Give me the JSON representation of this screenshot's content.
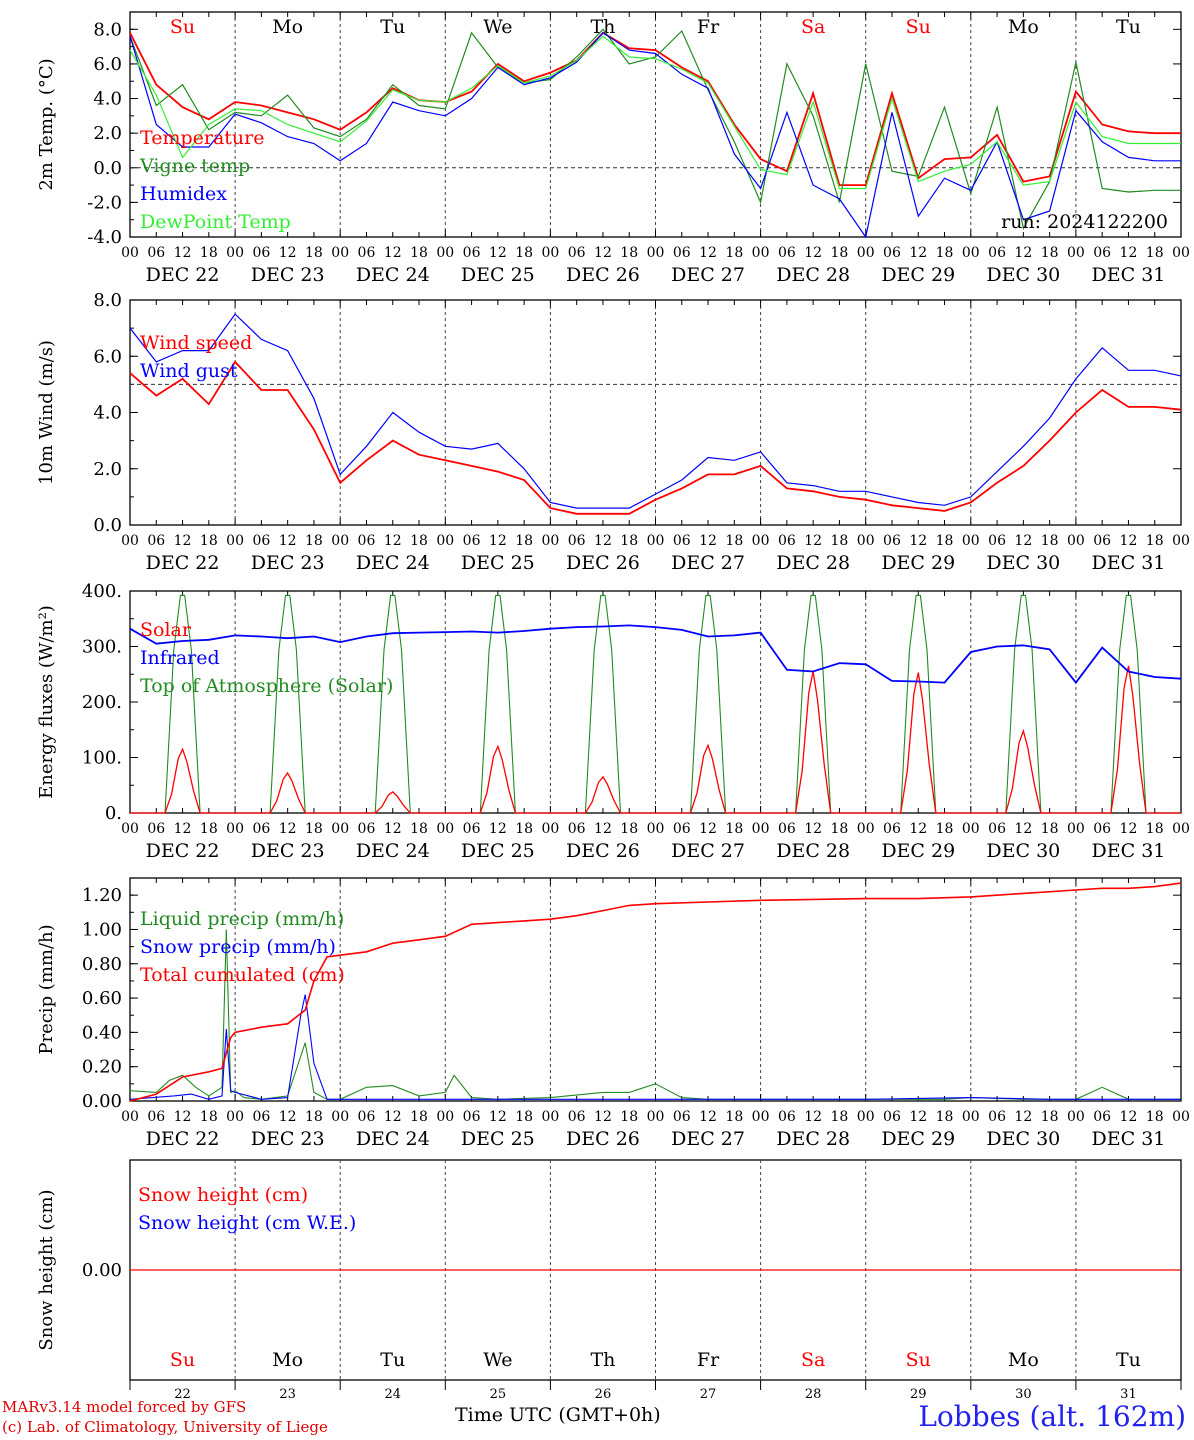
{
  "chart_data": [
    {
      "type": "line",
      "ylabel": "2m Temp. (°C)",
      "ylim": [
        -4,
        9
      ],
      "yticks": [
        "-4.0",
        "-2.0",
        "0.0",
        "2.0",
        "4.0",
        "6.0",
        "8.0"
      ],
      "ytick_values": [
        -4,
        -2,
        0,
        2,
        4,
        6,
        8
      ],
      "reference_line": 0,
      "annotation": "run: 2024122200",
      "x_hours": [
        0,
        6,
        12,
        18,
        24,
        30,
        36,
        42,
        48,
        54,
        60,
        66,
        72,
        78,
        84,
        90,
        96,
        102,
        108,
        114,
        120,
        126,
        132,
        138,
        144,
        150,
        156,
        162,
        168,
        174,
        180,
        186,
        192,
        198,
        204,
        210,
        216,
        222,
        228,
        234,
        240
      ],
      "series": [
        {
          "name": "Temperature",
          "color": "#ff0000",
          "values": [
            7.8,
            4.8,
            3.5,
            2.8,
            3.8,
            3.6,
            3.2,
            2.8,
            2.2,
            3.2,
            4.6,
            3.9,
            3.8,
            4.4,
            6.0,
            5.0,
            5.5,
            6.2,
            7.8,
            6.9,
            6.8,
            5.8,
            5.0,
            2.5,
            0.5,
            -0.2,
            4.3,
            -1.0,
            -1.0,
            4.3,
            -0.6,
            0.5,
            0.6,
            1.9,
            -0.8,
            -0.5,
            4.4,
            2.5,
            2.1,
            2.0,
            2.0
          ]
        },
        {
          "name": "Vigne temp",
          "color": "#228b22",
          "values": [
            7.6,
            3.6,
            4.8,
            2.2,
            3.2,
            3.0,
            4.2,
            2.3,
            1.8,
            2.8,
            4.8,
            3.6,
            3.4,
            7.8,
            5.8,
            4.9,
            5.1,
            6.4,
            8.0,
            6.0,
            6.4,
            7.9,
            4.5,
            1.5,
            -2.0,
            6.0,
            3.0,
            -2.0,
            6.0,
            -0.2,
            -0.5,
            3.5,
            -1.5,
            3.5,
            -3.5,
            -0.8,
            6.1,
            -1.2,
            -1.4,
            -1.3,
            -1.3
          ]
        },
        {
          "name": "Humidex",
          "color": "#0000ff",
          "values": [
            7.6,
            2.5,
            1.2,
            1.2,
            3.1,
            2.6,
            1.8,
            1.4,
            0.4,
            1.4,
            3.8,
            3.3,
            3.0,
            4.0,
            5.8,
            4.8,
            5.2,
            6.1,
            7.8,
            6.8,
            6.6,
            5.4,
            4.6,
            0.8,
            -1.2,
            3.2,
            -1.0,
            -1.8,
            -4.0,
            3.2,
            -2.8,
            -0.6,
            -1.3,
            1.5,
            -3.0,
            -2.5,
            3.3,
            1.5,
            0.6,
            0.4,
            0.4
          ]
        },
        {
          "name": "DewPoint Temp",
          "color": "#33ee33",
          "values": [
            6.8,
            4.2,
            0.6,
            2.5,
            3.4,
            3.3,
            2.5,
            2.0,
            1.5,
            2.7,
            4.5,
            3.9,
            3.8,
            4.6,
            5.9,
            4.9,
            5.3,
            6.2,
            7.6,
            6.4,
            6.3,
            5.7,
            4.9,
            2.4,
            -0.1,
            -0.4,
            3.8,
            -1.2,
            -1.2,
            4.0,
            -0.8,
            -0.2,
            0.2,
            1.5,
            -1.0,
            -0.8,
            3.8,
            1.8,
            1.4,
            1.4,
            1.4
          ]
        }
      ]
    },
    {
      "type": "line",
      "ylabel": "10m Wind (m/s)",
      "ylim": [
        0,
        8
      ],
      "yticks": [
        "0.0",
        "2.0",
        "4.0",
        "6.0",
        "8.0"
      ],
      "ytick_values": [
        0,
        2,
        4,
        6,
        8
      ],
      "reference_line": 5,
      "x_hours": [
        0,
        6,
        12,
        18,
        24,
        30,
        36,
        42,
        48,
        54,
        60,
        66,
        72,
        78,
        84,
        90,
        96,
        102,
        108,
        114,
        120,
        126,
        132,
        138,
        144,
        150,
        156,
        162,
        168,
        174,
        180,
        186,
        192,
        198,
        204,
        210,
        216,
        222,
        228,
        234,
        240
      ],
      "series": [
        {
          "name": "Wind speed",
          "color": "#ff0000",
          "values": [
            5.4,
            4.6,
            5.2,
            4.3,
            5.8,
            4.8,
            4.8,
            3.4,
            1.5,
            2.3,
            3.0,
            2.5,
            2.3,
            2.1,
            1.9,
            1.6,
            0.6,
            0.4,
            0.4,
            0.4,
            0.9,
            1.3,
            1.8,
            1.8,
            2.1,
            1.3,
            1.2,
            1.0,
            0.9,
            0.7,
            0.6,
            0.5,
            0.8,
            1.5,
            2.1,
            3.0,
            4.0,
            4.8,
            4.2,
            4.2,
            4.1
          ]
        },
        {
          "name": "Wind gust",
          "color": "#0000ff",
          "values": [
            7.0,
            5.8,
            6.2,
            6.2,
            7.5,
            6.6,
            6.2,
            4.5,
            1.8,
            2.8,
            4.0,
            3.3,
            2.8,
            2.7,
            2.9,
            2.0,
            0.8,
            0.6,
            0.6,
            0.6,
            1.1,
            1.6,
            2.4,
            2.3,
            2.6,
            1.5,
            1.4,
            1.2,
            1.2,
            1.0,
            0.8,
            0.7,
            1.0,
            1.9,
            2.8,
            3.8,
            5.2,
            6.3,
            5.5,
            5.5,
            5.3
          ]
        }
      ]
    },
    {
      "type": "line",
      "ylabel": "Energy fluxes (W/m²)",
      "ylim": [
        0,
        400
      ],
      "yticks": [
        "0.",
        "100.",
        "200.",
        "300.",
        "400."
      ],
      "ytick_values": [
        0,
        100,
        200,
        300,
        400
      ],
      "solar_peaks_by_day": [
        115,
        72,
        38,
        120,
        65,
        122,
        255,
        253,
        148,
        265
      ],
      "toa_peak": 392,
      "series": [
        {
          "name": "Solar",
          "color": "#ff0000"
        },
        {
          "name": "Infrared",
          "color": "#0000ff",
          "x_hours": [
            0,
            6,
            12,
            18,
            24,
            30,
            36,
            42,
            48,
            54,
            60,
            66,
            72,
            78,
            84,
            90,
            96,
            102,
            108,
            114,
            120,
            126,
            132,
            138,
            144,
            150,
            156,
            162,
            168,
            174,
            180,
            186,
            192,
            198,
            204,
            210,
            216,
            222,
            228,
            234,
            240
          ],
          "values": [
            332,
            305,
            310,
            312,
            320,
            318,
            315,
            318,
            308,
            318,
            324,
            325,
            326,
            327,
            325,
            328,
            332,
            335,
            336,
            338,
            335,
            330,
            318,
            320,
            325,
            258,
            255,
            270,
            268,
            238,
            237,
            235,
            290,
            300,
            302,
            295,
            235,
            298,
            255,
            245,
            242
          ]
        },
        {
          "name": "Top of Atmosphere (Solar)",
          "color": "#228b22"
        }
      ]
    },
    {
      "type": "line",
      "ylabel": "Precip (mm/h)",
      "ylim": [
        0,
        1.3
      ],
      "yticks": [
        "0.00",
        "0.20",
        "0.40",
        "0.60",
        "0.80",
        "1.00",
        "1.20"
      ],
      "ytick_values": [
        0,
        0.2,
        0.4,
        0.6,
        0.8,
        1.0,
        1.2
      ],
      "series": [
        {
          "name": "Liquid precip (mm/h)",
          "color": "#228b22",
          "x_hours": [
            0,
            6,
            9,
            12,
            15,
            18,
            21,
            22,
            23,
            24,
            26,
            30,
            36,
            40,
            42,
            45,
            48,
            54,
            60,
            66,
            72,
            74,
            78,
            84,
            96,
            108,
            114,
            120,
            126,
            132,
            144,
            168,
            186,
            192,
            204,
            216,
            222,
            228,
            240
          ],
          "values": [
            0.06,
            0.05,
            0.12,
            0.15,
            0.08,
            0.03,
            0.08,
            1.0,
            0.05,
            0.06,
            0.02,
            0.01,
            0.03,
            0.34,
            0.05,
            0.01,
            0.01,
            0.08,
            0.09,
            0.03,
            0.05,
            0.15,
            0.02,
            0.01,
            0.02,
            0.05,
            0.05,
            0.1,
            0.02,
            0.01,
            0.01,
            0.01,
            0.01,
            0.02,
            0.01,
            0.01,
            0.08,
            0.01,
            0.01
          ]
        },
        {
          "name": "Snow precip (mm/h)",
          "color": "#0000ff",
          "x_hours": [
            0,
            10,
            14,
            18,
            21,
            22,
            23,
            24,
            30,
            36,
            39,
            40,
            42,
            45,
            48,
            60,
            96,
            144,
            168,
            192,
            210,
            240
          ],
          "values": [
            0.01,
            0.03,
            0.04,
            0.01,
            0.03,
            0.42,
            0.06,
            0.05,
            0.01,
            0.02,
            0.5,
            0.62,
            0.22,
            0.01,
            0.01,
            0.01,
            0.01,
            0.01,
            0.01,
            0.02,
            0.01,
            0.01
          ]
        },
        {
          "name": "Total cumulated (cm)",
          "color": "#ff0000",
          "x_hours": [
            0,
            6,
            12,
            18,
            21,
            23,
            24,
            30,
            36,
            40,
            42,
            45,
            48,
            54,
            60,
            66,
            72,
            78,
            84,
            90,
            96,
            102,
            108,
            114,
            120,
            132,
            144,
            168,
            180,
            192,
            204,
            216,
            222,
            228,
            234,
            240
          ],
          "values": [
            0.0,
            0.04,
            0.14,
            0.17,
            0.19,
            0.37,
            0.4,
            0.43,
            0.45,
            0.53,
            0.7,
            0.84,
            0.85,
            0.87,
            0.92,
            0.94,
            0.96,
            1.03,
            1.04,
            1.05,
            1.06,
            1.08,
            1.11,
            1.14,
            1.15,
            1.16,
            1.17,
            1.18,
            1.18,
            1.19,
            1.21,
            1.23,
            1.24,
            1.24,
            1.25,
            1.27
          ]
        }
      ]
    },
    {
      "type": "line",
      "ylabel": "Snow height (cm)",
      "yticks": [
        "0.00"
      ],
      "ytick_values": [
        0
      ],
      "series": [
        {
          "name": "Snow height (cm)",
          "color": "#ff0000",
          "values": [
            0,
            0
          ]
        },
        {
          "name": "Snow height (cm W.E.)",
          "color": "#0000ff",
          "values": [
            0,
            0
          ]
        }
      ]
    }
  ],
  "days": {
    "weekdays": [
      "Su",
      "Mo",
      "Tu",
      "We",
      "Th",
      "Fr",
      "Sa",
      "Su",
      "Mo",
      "Tu"
    ],
    "weekday_colors": [
      "#ff0000",
      "#000000",
      "#000000",
      "#000000",
      "#000000",
      "#000000",
      "#ff0000",
      "#ff0000",
      "#000000",
      "#000000"
    ],
    "date_labels": [
      "DEC 22",
      "DEC 23",
      "DEC 24",
      "DEC 25",
      "DEC 26",
      "DEC 27",
      "DEC 28",
      "DEC 29",
      "DEC 30",
      "DEC 31"
    ],
    "day_numbers": [
      "22",
      "23",
      "24",
      "25",
      "26",
      "27",
      "28",
      "29",
      "30",
      "31"
    ],
    "hour_ticks": [
      "00",
      "06",
      "12",
      "18"
    ],
    "final_hour": "00"
  },
  "footer": {
    "credit_line1": "MARv3.14 model forced by GFS",
    "credit_line2": "(c) Lab. of Climatology, University of Liege",
    "xlabel": "Time UTC (GMT+0h)",
    "station": "Lobbes (alt. 162m)"
  }
}
